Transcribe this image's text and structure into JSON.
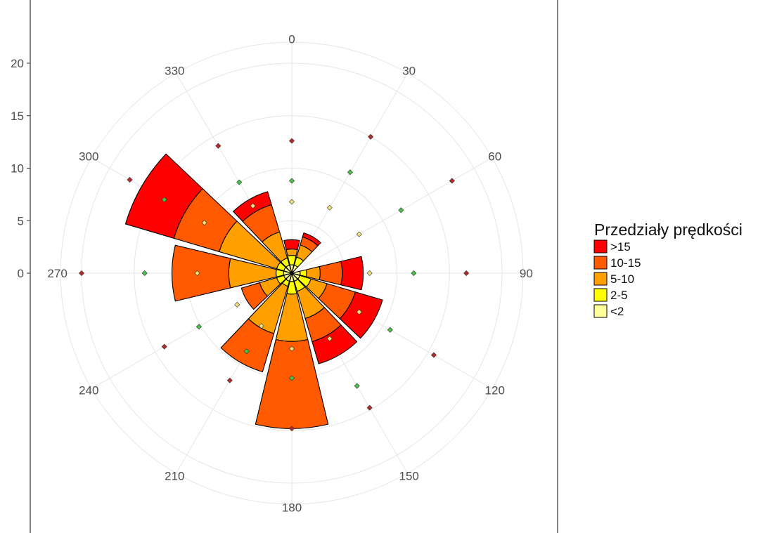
{
  "chart_data": {
    "type": "wind-rose",
    "legend": {
      "title": "Przedziały prędkości",
      "placement": "right",
      "entries": [
        {
          "label": ">15",
          "color": "#ff0000"
        },
        {
          "label": "10-15",
          "color": "#ff5a00"
        },
        {
          "label": "5-10",
          "color": "#ff9f00"
        },
        {
          "label": "2-5",
          "color": "#ffff00"
        },
        {
          "label": "<2",
          "color": "#ffff99"
        }
      ]
    },
    "r_axis": {
      "ticks": [
        "0",
        "5",
        "10",
        "15",
        "20"
      ],
      "values": [
        0,
        5,
        10,
        15,
        20
      ],
      "range": [
        0,
        22
      ]
    },
    "angle_axis": {
      "labels": [
        "0",
        "30",
        "60",
        "90",
        "120",
        "150",
        "180",
        "210",
        "240",
        "270",
        "300",
        "330"
      ],
      "angles": [
        0,
        30,
        60,
        90,
        120,
        150,
        180,
        210,
        240,
        270,
        300,
        330
      ]
    },
    "grid": true,
    "sectors": [
      {
        "direction": 0,
        "cumulative": [
          0.8,
          1.7,
          2.3,
          2.3,
          3.2
        ]
      },
      {
        "direction": 30,
        "cumulative": [
          0.8,
          1.6,
          2.8,
          3.6,
          4.0
        ]
      },
      {
        "direction": 90,
        "cumulative": [
          0.8,
          1.4,
          2.7,
          4.8,
          6.8
        ]
      },
      {
        "direction": 120,
        "cumulative": [
          0.8,
          1.9,
          3.5,
          6.3,
          9.0
        ]
      },
      {
        "direction": 150,
        "cumulative": [
          0.8,
          1.8,
          4.5,
          6.8,
          9.0
        ]
      },
      {
        "direction": 180,
        "cumulative": [
          0.8,
          2.0,
          6.5,
          14.8,
          14.8
        ]
      },
      {
        "direction": 210,
        "cumulative": [
          0.8,
          1.3,
          6.0,
          9.8,
          9.8
        ]
      },
      {
        "direction": 240,
        "cumulative": [
          0.8,
          1.5,
          3.2,
          5.0,
          5.0
        ]
      },
      {
        "direction": 270,
        "cumulative": [
          0.8,
          1.5,
          6.0,
          11.4,
          11.4
        ]
      },
      {
        "direction": 300,
        "cumulative": [
          0.8,
          1.5,
          7.2,
          11.7,
          16.5
        ]
      },
      {
        "direction": 330,
        "cumulative": [
          0.8,
          1.5,
          4.1,
          6.8,
          8.1
        ]
      }
    ],
    "points": [
      {
        "direction": 0,
        "value": 12.6,
        "class": ">15"
      },
      {
        "direction": 0,
        "value": 8.8,
        "class": "10-15"
      },
      {
        "direction": 0,
        "value": 6.8,
        "class": "5-10"
      },
      {
        "direction": 30,
        "value": 15.0,
        "class": ">15"
      },
      {
        "direction": 30,
        "value": 11.1,
        "class": "10-15"
      },
      {
        "direction": 30,
        "value": 7.2,
        "class": "5-10"
      },
      {
        "direction": 60,
        "value": 17.6,
        "class": ">15"
      },
      {
        "direction": 60,
        "value": 12.0,
        "class": "10-15"
      },
      {
        "direction": 60,
        "value": 7.4,
        "class": "5-10"
      },
      {
        "direction": 90,
        "value": 16.6,
        "class": ">15"
      },
      {
        "direction": 90,
        "value": 11.6,
        "class": "10-15"
      },
      {
        "direction": 90,
        "value": 7.4,
        "class": "5-10"
      },
      {
        "direction": 120,
        "value": 15.6,
        "class": ">15"
      },
      {
        "direction": 120,
        "value": 10.8,
        "class": "10-15"
      },
      {
        "direction": 120,
        "value": 7.4,
        "class": "5-10"
      },
      {
        "direction": 150,
        "value": 14.8,
        "class": ">15"
      },
      {
        "direction": 150,
        "value": 12.4,
        "class": "10-15"
      },
      {
        "direction": 150,
        "value": 7.2,
        "class": "5-10"
      },
      {
        "direction": 180,
        "value": 14.8,
        "class": ">15"
      },
      {
        "direction": 180,
        "value": 10.0,
        "class": "10-15"
      },
      {
        "direction": 180,
        "value": 7.2,
        "class": "5-10"
      },
      {
        "direction": 210,
        "value": 11.8,
        "class": ">15"
      },
      {
        "direction": 210,
        "value": 8.6,
        "class": "10-15"
      },
      {
        "direction": 210,
        "value": 5.8,
        "class": "5-10"
      },
      {
        "direction": 240,
        "value": 14.0,
        "class": ">15"
      },
      {
        "direction": 240,
        "value": 10.2,
        "class": "10-15"
      },
      {
        "direction": 240,
        "value": 6.0,
        "class": "5-10"
      },
      {
        "direction": 270,
        "value": 20.0,
        "class": ">15"
      },
      {
        "direction": 270,
        "value": 14.0,
        "class": "10-15"
      },
      {
        "direction": 270,
        "value": 9.0,
        "class": "5-10"
      },
      {
        "direction": 300,
        "value": 17.8,
        "class": ">15"
      },
      {
        "direction": 300,
        "value": 14.0,
        "class": "10-15"
      },
      {
        "direction": 300,
        "value": 9.6,
        "class": "5-10"
      },
      {
        "direction": 330,
        "value": 14.0,
        "class": ">15"
      },
      {
        "direction": 330,
        "value": 10.0,
        "class": "10-15"
      },
      {
        "direction": 330,
        "value": 7.4,
        "class": "5-10"
      }
    ]
  }
}
